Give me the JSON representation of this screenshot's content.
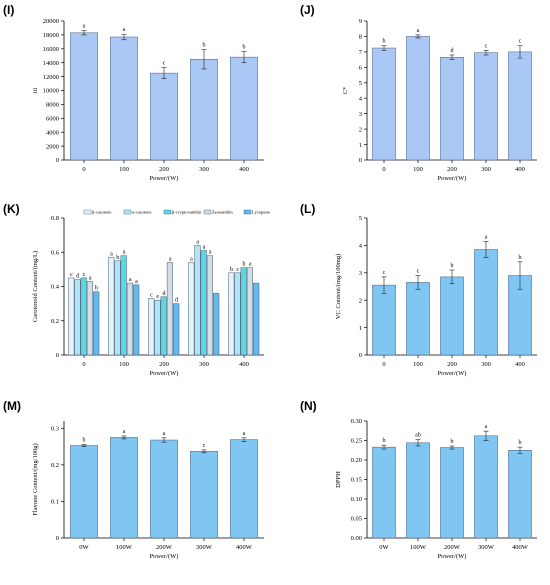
{
  "bar_color": "#a9c8f5",
  "edge_color": "#4a5a7a",
  "chart_data": [
    {
      "panel": "(I)",
      "type": "bar",
      "categories": [
        "0",
        "100",
        "200",
        "300",
        "400"
      ],
      "values": [
        18300,
        17700,
        12500,
        14500,
        14800
      ],
      "errors": [
        300,
        400,
        800,
        1400,
        800
      ],
      "letters": [
        "a",
        "a",
        "c",
        "b",
        "b"
      ],
      "ylim": [
        0,
        20000
      ],
      "yticks": [
        0,
        2000,
        4000,
        6000,
        8000,
        10000,
        12000,
        14000,
        16000,
        18000,
        20000
      ],
      "ylabel": "iii",
      "xlabel": "Power/(W)",
      "color": "#a9c8f5"
    },
    {
      "panel": "(J)",
      "type": "bar",
      "categories": [
        "0",
        "100",
        "200",
        "300",
        "400"
      ],
      "values": [
        7.25,
        8.0,
        6.65,
        6.95,
        7.0
      ],
      "errors": [
        0.15,
        0.1,
        0.15,
        0.15,
        0.4
      ],
      "letters": [
        "b",
        "a",
        "d",
        "c",
        "c"
      ],
      "ylim": [
        0,
        9
      ],
      "yticks": [
        0,
        1,
        2,
        3,
        4,
        5,
        6,
        7,
        8,
        9
      ],
      "ylabel": "C*",
      "xlabel": "Power/(W)",
      "color": "#a9c8f5"
    },
    {
      "panel": "(K)",
      "type": "bar",
      "categories": [
        "0",
        "100",
        "200",
        "300",
        "400"
      ],
      "series": [
        {
          "name": "β-carotene",
          "color": "#e4f4f6",
          "values": [
            0.45,
            0.57,
            0.33,
            0.54,
            0.48
          ],
          "letters": [
            "c",
            "a",
            "c",
            "a",
            "b"
          ]
        },
        {
          "name": "α-carotene",
          "color": "#b0e4f4",
          "values": [
            0.44,
            0.55,
            0.32,
            0.64,
            0.48
          ],
          "letters": [
            "d",
            "b",
            "e",
            "a",
            "c"
          ]
        },
        {
          "name": "β-cryptoxanthin",
          "color": "#5cd8e0",
          "values": [
            0.45,
            0.58,
            0.34,
            0.61,
            0.51
          ],
          "letters": [
            "c",
            "a",
            "d",
            "a",
            "b"
          ]
        },
        {
          "name": "Zeaxanthin",
          "color": "#d3dde3",
          "values": [
            0.43,
            0.42,
            0.54,
            0.58,
            0.51
          ],
          "letters": [
            "a",
            "a",
            "a",
            "a",
            "a"
          ]
        },
        {
          "name": "Lycopene",
          "color": "#64b8ea",
          "values": [
            0.37,
            0.41,
            0.3,
            0.36,
            0.42
          ],
          "letters": [
            "b",
            "a",
            "d",
            "",
            ""
          ]
        }
      ],
      "ylim": [
        0,
        0.8
      ],
      "yticks": [
        0,
        0.2,
        0.4,
        0.6,
        0.8
      ],
      "ylabel": "Carotenoid Content/(mg/L)",
      "xlabel": "Power/(W)",
      "legend": "top"
    },
    {
      "panel": "(L)",
      "type": "bar",
      "categories": [
        "0",
        "100",
        "200",
        "300",
        "400"
      ],
      "values": [
        2.55,
        2.65,
        2.85,
        3.85,
        2.9
      ],
      "errors": [
        0.3,
        0.25,
        0.25,
        0.3,
        0.5
      ],
      "letters": [
        "c",
        "c",
        "b",
        "a",
        "b"
      ],
      "ylim": [
        0,
        5
      ],
      "yticks": [
        0,
        1,
        2,
        3,
        4,
        5
      ],
      "ylabel": "VC Content/(mg/100mg)",
      "xlabel": "Power/(W)",
      "color": "#7fc7f2"
    },
    {
      "panel": "(M)",
      "type": "bar",
      "categories": [
        "0W",
        "100W",
        "200W",
        "300W",
        "400W"
      ],
      "values": [
        0.253,
        0.275,
        0.268,
        0.237,
        0.269
      ],
      "errors": [
        0.003,
        0.004,
        0.006,
        0.004,
        0.005
      ],
      "letters": [
        "b",
        "a",
        "a",
        "c",
        "a"
      ],
      "ylim": [
        0,
        0.32
      ],
      "yticks": [
        0,
        0.1,
        0.2,
        0.3
      ],
      "ylabel": "Flavone Content/(mg/100g)",
      "xlabel": "Power/(W)",
      "color": "#7fc7f2"
    },
    {
      "panel": "(N)",
      "type": "bar",
      "categories": [
        "0W",
        "100W",
        "200W",
        "300W",
        "400W"
      ],
      "values": [
        0.233,
        0.244,
        0.232,
        0.262,
        0.225
      ],
      "errors": [
        0.005,
        0.008,
        0.004,
        0.012,
        0.008
      ],
      "letters": [
        "b",
        "ab",
        "b",
        "a",
        "b"
      ],
      "ylim": [
        0,
        0.3
      ],
      "yticks": [
        0,
        0.05,
        0.1,
        0.15,
        0.2,
        0.25,
        0.3
      ],
      "ytick_labels": [
        "0.00",
        "0.05",
        "0.10",
        "0.15",
        "0.20",
        "0.25",
        "0.30"
      ],
      "ylabel": "DPPH",
      "xlabel": "Power/(W)",
      "color": "#7fc7f2"
    }
  ]
}
